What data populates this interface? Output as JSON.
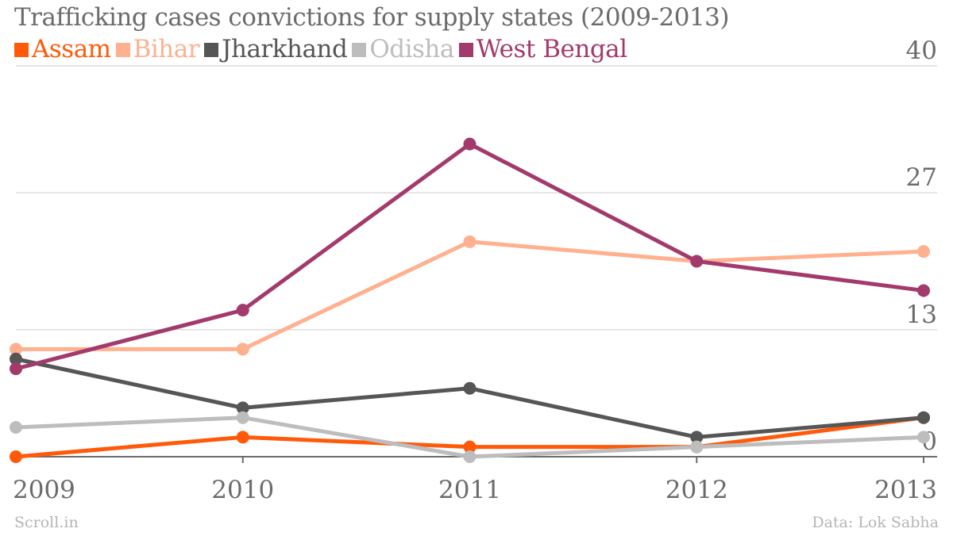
{
  "title": "Trafficking cases convictions for supply states (2009-2013)",
  "footer": {
    "source_left": "Scroll.in",
    "source_right": "Data: Lok Sabha"
  },
  "chart_data": {
    "type": "line",
    "title": "Trafficking cases convictions for supply states (2009-2013)",
    "x": [
      "2009",
      "2010",
      "2011",
      "2012",
      "2013"
    ],
    "ylim": [
      0,
      40
    ],
    "yticks": [
      0,
      13,
      27,
      40
    ],
    "grid": true,
    "legend_position": "top-left",
    "series": [
      {
        "name": "Assam",
        "color": "#ff5a0a",
        "values": [
          0,
          2,
          1,
          1,
          4
        ]
      },
      {
        "name": "Bihar",
        "color": "#ffb08f",
        "values": [
          11,
          11,
          22,
          20,
          21
        ]
      },
      {
        "name": "Jharkhand",
        "color": "#565656",
        "values": [
          10,
          5,
          7,
          2,
          4
        ]
      },
      {
        "name": "Odisha",
        "color": "#bdbdbd",
        "values": [
          3,
          4,
          0,
          1,
          2
        ]
      },
      {
        "name": "West Bengal",
        "color": "#a33a6d",
        "values": [
          9,
          15,
          32,
          20,
          17
        ]
      }
    ]
  }
}
